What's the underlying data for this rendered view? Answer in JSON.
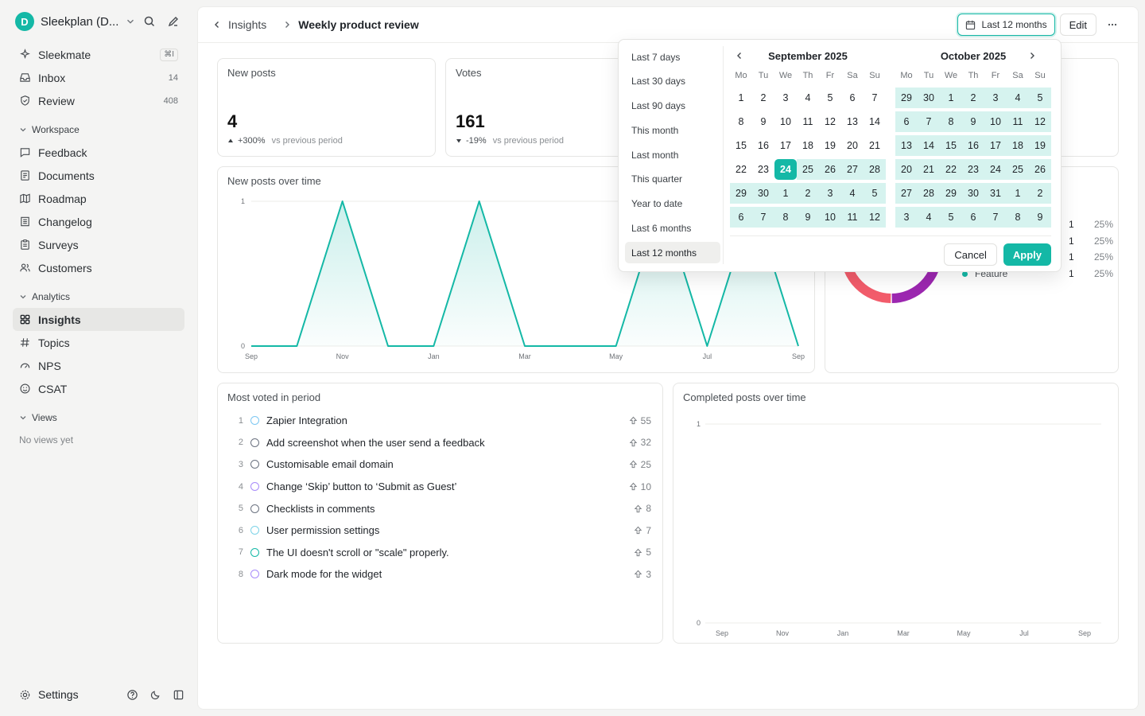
{
  "workspace": {
    "initial": "D",
    "name": "Sleekplan (D..."
  },
  "nav_top": [
    {
      "label": "Sleekmate",
      "icon": "sparkle-icon",
      "kbd": "⌘I"
    },
    {
      "label": "Inbox",
      "icon": "inbox-icon",
      "count": "14"
    },
    {
      "label": "Review",
      "icon": "shield-check-icon",
      "count": "408"
    }
  ],
  "sections": {
    "workspace": "Workspace",
    "analytics": "Analytics",
    "views": "Views"
  },
  "nav_workspace": [
    {
      "label": "Feedback",
      "icon": "message-square-icon"
    },
    {
      "label": "Documents",
      "icon": "document-icon"
    },
    {
      "label": "Roadmap",
      "icon": "map-icon"
    },
    {
      "label": "Changelog",
      "icon": "changelog-icon"
    },
    {
      "label": "Surveys",
      "icon": "clipboard-icon"
    },
    {
      "label": "Customers",
      "icon": "users-icon"
    }
  ],
  "nav_analytics": [
    {
      "label": "Insights",
      "icon": "grid-icon",
      "active": true
    },
    {
      "label": "Topics",
      "icon": "hash-icon"
    },
    {
      "label": "NPS",
      "icon": "gauge-icon"
    },
    {
      "label": "CSAT",
      "icon": "smile-icon"
    }
  ],
  "views_empty": "No views yet",
  "footer": {
    "settings_label": "Settings"
  },
  "breadcrumb": {
    "back_label": "Insights",
    "title": "Weekly product review"
  },
  "toolbar": {
    "date_range": "Last 12 months",
    "edit_label": "Edit"
  },
  "stats": [
    {
      "title": "New posts",
      "value": "4",
      "direction": "up",
      "delta": "+300%",
      "suffix": "vs previous period"
    },
    {
      "title": "Votes",
      "value": "161",
      "direction": "down",
      "delta": "-19%",
      "suffix": "vs previous period"
    }
  ],
  "new_posts_chart": {
    "title": "New posts over time",
    "color": "#14b8a6"
  },
  "most_voted": {
    "title": "Most voted in period",
    "items": [
      {
        "rank": "1",
        "title": "Zapier Integration",
        "votes": "55",
        "status_color": "#7cc7f2"
      },
      {
        "rank": "2",
        "title": "Add screenshot when the user send a feedback",
        "votes": "32",
        "status_color": "#6b7280"
      },
      {
        "rank": "3",
        "title": "Customisable email domain",
        "votes": "25",
        "status_color": "#6b7280"
      },
      {
        "rank": "4",
        "title": "Change ‘Skip’ button to ‘Submit as Guest’",
        "votes": "10",
        "status_color": "#a78bfa"
      },
      {
        "rank": "5",
        "title": "Checklists in comments",
        "votes": "8",
        "status_color": "#6b7280"
      },
      {
        "rank": "6",
        "title": "User permission settings",
        "votes": "7",
        "status_color": "#7dd3e8"
      },
      {
        "rank": "7",
        "title": "The UI doesn't scroll or \"scale\" properly.",
        "votes": "5",
        "status_color": "#14b8a6"
      },
      {
        "rank": "8",
        "title": "Dark mode for the widget",
        "votes": "3",
        "status_color": "#a78bfa"
      }
    ]
  },
  "completed_chart": {
    "title": "Completed posts over time"
  },
  "type_legend": {
    "rows": [
      {
        "name": "",
        "count": "1",
        "pct": "25%",
        "color": "#14b8a6"
      },
      {
        "name": "",
        "count": "1",
        "pct": "25%",
        "color": "#9c27b0"
      },
      {
        "name": "",
        "count": "1",
        "pct": "25%",
        "color": "#f25c6b"
      },
      {
        "name": "Feature",
        "count": "1",
        "pct": "25%",
        "color": "#14b8a6"
      }
    ]
  },
  "date_picker": {
    "presets": [
      {
        "label": "Last 7 days"
      },
      {
        "label": "Last 30 days"
      },
      {
        "label": "Last 90 days"
      },
      {
        "label": "This month"
      },
      {
        "label": "Last month"
      },
      {
        "label": "This quarter"
      },
      {
        "label": "Year to date"
      },
      {
        "label": "Last 6 months"
      },
      {
        "label": "Last 12 months",
        "active": true
      }
    ],
    "weekdays": [
      "Mo",
      "Tu",
      "We",
      "Th",
      "Fr",
      "Sa",
      "Su"
    ],
    "months": [
      {
        "title": "September 2025",
        "days": [
          "1",
          "2",
          "3",
          "4",
          "5",
          "6",
          "7",
          "8",
          "9",
          "10",
          "11",
          "12",
          "13",
          "14",
          "15",
          "16",
          "17",
          "18",
          "19",
          "20",
          "21",
          "22",
          "23",
          "24",
          "25",
          "26",
          "27",
          "28",
          "29",
          "30",
          "1",
          "2",
          "3",
          "4",
          "5",
          "6",
          "7",
          "8",
          "9",
          "10",
          "11",
          "12"
        ],
        "range_start": 23,
        "selected": 23
      },
      {
        "title": "October 2025",
        "days": [
          "29",
          "30",
          "1",
          "2",
          "3",
          "4",
          "5",
          "6",
          "7",
          "8",
          "9",
          "10",
          "11",
          "12",
          "13",
          "14",
          "15",
          "16",
          "17",
          "18",
          "19",
          "20",
          "21",
          "22",
          "23",
          "24",
          "25",
          "26",
          "27",
          "28",
          "29",
          "30",
          "31",
          "1",
          "2",
          "3",
          "4",
          "5",
          "6",
          "7",
          "8",
          "9"
        ],
        "range_start": 0,
        "selected": -1
      }
    ],
    "cancel_label": "Cancel",
    "apply_label": "Apply",
    "accent": "#14b8a6",
    "range_color": "#d6f3ef"
  },
  "chart_data": [
    {
      "type": "area",
      "title": "New posts over time",
      "x": [
        "Sep",
        "",
        "Nov",
        "",
        "Jan",
        "",
        "Mar",
        "",
        "May",
        "",
        "Jul",
        "",
        "Sep"
      ],
      "tick_labels": [
        "Sep",
        "Nov",
        "Jan",
        "Mar",
        "May",
        "Jul",
        "Sep"
      ],
      "y_ticks": [
        "0",
        "1"
      ],
      "values": [
        0,
        0,
        1,
        0,
        0,
        1,
        0,
        0,
        0,
        1,
        0,
        1,
        0
      ],
      "ylim": [
        0,
        1
      ],
      "grid": true
    },
    {
      "type": "line",
      "title": "Completed posts over time",
      "tick_labels": [
        "Sep",
        "Nov",
        "Jan",
        "Mar",
        "May",
        "Jul",
        "Sep"
      ],
      "y_ticks": [
        "0",
        "1"
      ],
      "values": [
        0,
        0,
        0,
        0,
        0,
        0,
        0
      ],
      "ylim": [
        0,
        1
      ],
      "grid": true
    },
    {
      "type": "pie",
      "values": [
        1,
        1,
        1,
        1
      ],
      "percentages": [
        "25%",
        "25%",
        "25%",
        "25%"
      ],
      "colors": [
        "#14b8a6",
        "#9c27b0",
        "#f25c6b",
        "#14b8a6"
      ]
    }
  ]
}
